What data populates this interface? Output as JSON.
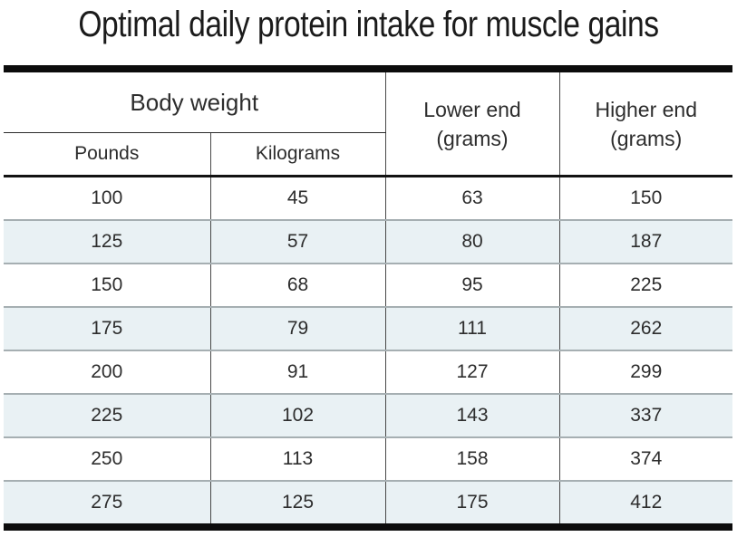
{
  "title": "Optimal daily protein intake for muscle gains",
  "table": {
    "group_header": "Body weight",
    "sub_headers": [
      "Pounds",
      "Kilograms"
    ],
    "lower_end": {
      "line1": "Lower end",
      "line2": "(grams)"
    },
    "higher_end": {
      "line1": "Higher end",
      "line2": "(grams)"
    }
  },
  "colors": {
    "frame_bar": "#0c0c0c",
    "row_alt_background": "#e9f1f4",
    "row_divider": "#a6afb2",
    "column_divider": "#484848",
    "text": "#2d2d2d"
  },
  "chart_data": {
    "type": "table",
    "title": "Optimal daily protein intake for muscle gains",
    "column_groups": [
      {
        "label": "Body weight",
        "columns": [
          "Pounds",
          "Kilograms"
        ]
      },
      {
        "label": "Lower end (grams)",
        "columns": [
          "Lower end (grams)"
        ]
      },
      {
        "label": "Higher end (grams)",
        "columns": [
          "Higher end (grams)"
        ]
      }
    ],
    "columns": [
      "Pounds",
      "Kilograms",
      "Lower end (grams)",
      "Higher end (grams)"
    ],
    "rows": [
      [
        100,
        45,
        63,
        150
      ],
      [
        125,
        57,
        80,
        187
      ],
      [
        150,
        68,
        95,
        225
      ],
      [
        175,
        79,
        111,
        262
      ],
      [
        200,
        91,
        127,
        299
      ],
      [
        225,
        102,
        143,
        337
      ],
      [
        250,
        113,
        158,
        374
      ],
      [
        275,
        125,
        175,
        412
      ]
    ]
  }
}
